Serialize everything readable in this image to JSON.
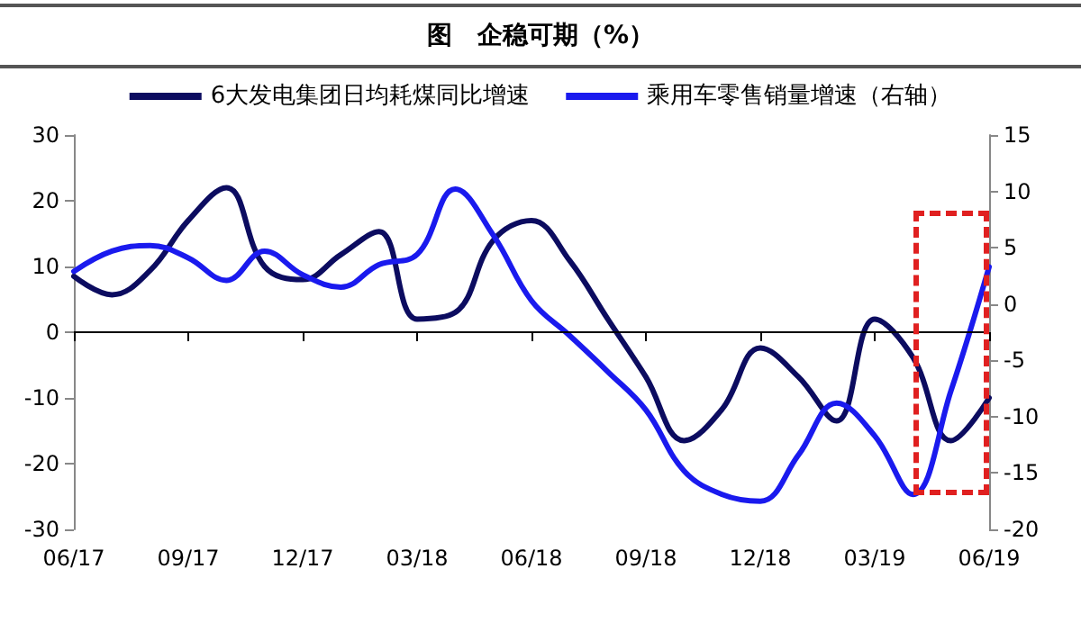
{
  "chart_data": {
    "type": "line",
    "title": "图　企稳可期（%）",
    "categories": [
      "06/17",
      null,
      null,
      "09/17",
      null,
      null,
      "12/17",
      null,
      null,
      "03/18",
      null,
      null,
      "06/18",
      null,
      null,
      "09/18",
      null,
      null,
      "12/18",
      null,
      null,
      "03/19",
      null,
      null,
      "06/19"
    ],
    "series": [
      {
        "name": "6大发电集团日均耗煤同比增速",
        "color": "#0c0c60",
        "values": [
          8.5,
          5.7,
          9.4,
          17,
          22,
          10,
          8,
          11.8,
          15.3,
          2,
          3,
          14,
          17,
          10.9,
          2,
          -6.8,
          -16.5,
          -11.7,
          -2.4,
          -6.8,
          -13.5,
          2,
          -3.8,
          -16.5,
          -10
        ]
      },
      {
        "name": "乘用车零售销量增速（右轴）",
        "color": "#1a1aee",
        "axis": "y2",
        "values": [
          2.9,
          4.7,
          5.2,
          4.1,
          2.1,
          4.7,
          2.6,
          1.5,
          3.5,
          4.4,
          10.2,
          6.1,
          0.3,
          -2.8,
          -6,
          -9.4,
          -14.8,
          -16.9,
          -17.5,
          -13.4,
          -8.8,
          -11.7,
          -16.9,
          -7.7,
          3.3
        ]
      }
    ],
    "ylim": [
      -30,
      30
    ],
    "yticks": [
      -30,
      -20,
      -10,
      0,
      10,
      20,
      30
    ],
    "y2lim": [
      -20,
      15
    ],
    "y2ticks": [
      -20,
      -15,
      -10,
      -5,
      0,
      5,
      10,
      15
    ],
    "ref_lines": [
      {
        "axis": "y",
        "value": 0,
        "color": "#000000"
      }
    ],
    "legend": "top",
    "grid": false,
    "marker": "none",
    "line_style": "solid"
  }
}
